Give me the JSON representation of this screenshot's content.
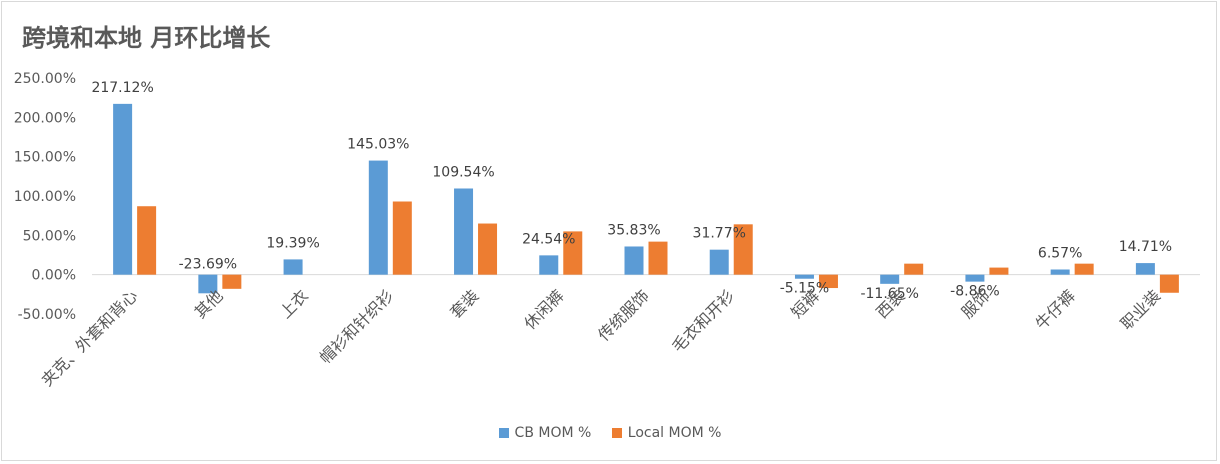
{
  "chart_data": {
    "type": "bar",
    "title": "跨境和本地 月环比增长",
    "xlabel": "",
    "ylabel": "",
    "ylim": [
      -50,
      250
    ],
    "yticks": [
      250,
      200,
      150,
      100,
      50,
      0,
      -50
    ],
    "ytick_labels": [
      "250.00%",
      "200.00%",
      "150.00%",
      "100.00%",
      "50.00%",
      "0.00%",
      "-50.00%"
    ],
    "grid": false,
    "legend_position": "bottom",
    "categories": [
      "夹克、外套和背心",
      "其他",
      "上衣",
      "帽衫和针织衫",
      "套装",
      "休闲裤",
      "传统服饰",
      "毛衣和开衫",
      "短裤",
      "西装",
      "服饰",
      "牛仔裤",
      "职业装"
    ],
    "series": [
      {
        "name": "CB MOM %",
        "color": "#5b9bd5",
        "values": [
          217.12,
          -23.69,
          19.39,
          145.03,
          109.54,
          24.54,
          35.83,
          31.77,
          -5.15,
          -11.65,
          -8.86,
          6.57,
          14.71
        ],
        "labels": [
          "217.12%",
          "-23.69%",
          "19.39%",
          "145.03%",
          "109.54%",
          "24.54%",
          "35.83%",
          "31.77%",
          "-5.15%",
          "-11.65%",
          "-8.86%",
          "6.57%",
          "14.71%"
        ]
      },
      {
        "name": "Local MOM %",
        "color": "#ed7d31",
        "values": [
          87.0,
          -18.0,
          0.0,
          93.0,
          65.0,
          55.0,
          42.0,
          64.0,
          -17.0,
          14.0,
          9.0,
          14.0,
          -23.0
        ]
      }
    ]
  }
}
